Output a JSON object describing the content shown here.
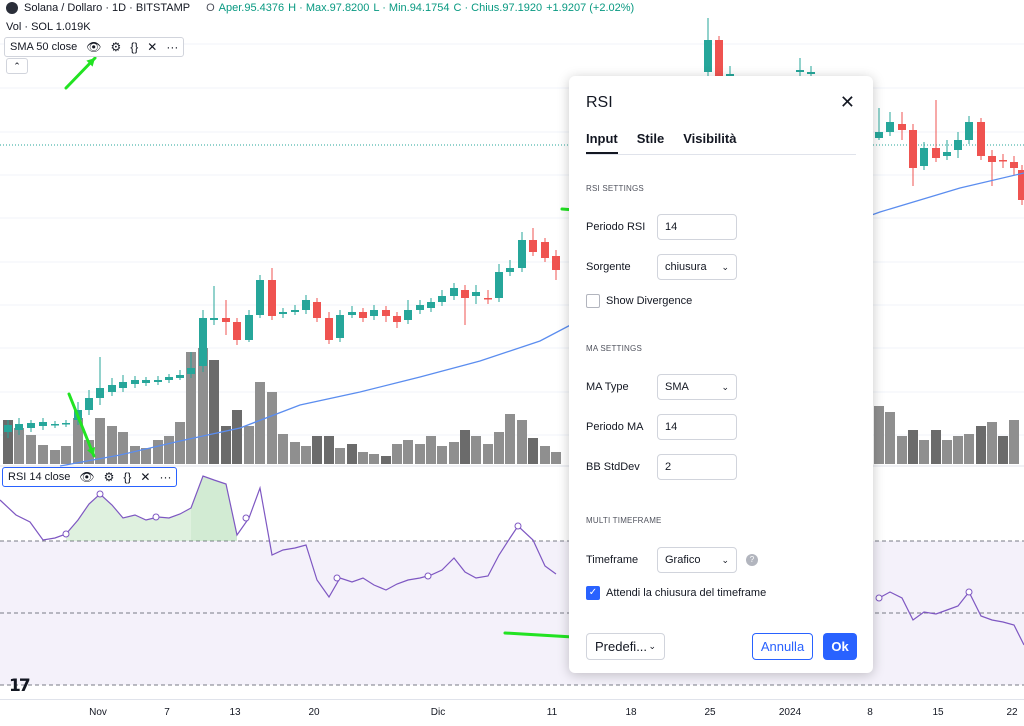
{
  "header": {
    "symbol": "Solana / Dollaro · 1D · BITSTAMP",
    "o_label": "O",
    "open": "Aper.95.4376",
    "high": "H · Max.97.8200",
    "low": "L · Min.94.1754",
    "close": "C · Chius.97.1920",
    "change": "+1.9207 (+2.02%)",
    "volume": "Vol · SOL  1.019K"
  },
  "sma_indicator": {
    "label": "SMA 50 close"
  },
  "rsi_indicator": {
    "label": "RSI 14 close"
  },
  "x_axis": [
    "Nov",
    "7",
    "13",
    "20",
    "Dic",
    "11",
    "18",
    "25",
    "2024",
    "8",
    "15",
    "22"
  ],
  "logo": "17",
  "colors": {
    "up": "#26a69a",
    "down": "#ef5350",
    "sma": "#5b8def",
    "rsi": "#7e57c2",
    "accent": "#2962ff",
    "arrow": "#22e322"
  },
  "dialog": {
    "title": "RSI",
    "tabs": [
      "Input",
      "Stile",
      "Visibilità"
    ],
    "rsi_settings": {
      "section": "RSI SETTINGS",
      "period_label": "Periodo RSI",
      "period_value": "14",
      "source_label": "Sorgente",
      "source_value": "chiusura",
      "divergence_label": "Show Divergence"
    },
    "ma_settings": {
      "section": "MA SETTINGS",
      "type_label": "MA Type",
      "type_value": "SMA",
      "period_label": "Periodo MA",
      "period_value": "14",
      "bb_label": "BB StdDev",
      "bb_value": "2"
    },
    "multi_tf": {
      "section": "MULTI TIMEFRAME",
      "tf_label": "Timeframe",
      "tf_value": "Grafico",
      "wait_label": "Attendi la chiusura del timeframe"
    },
    "footer": {
      "defaults": "Predefi...",
      "cancel": "Annulla",
      "ok": "Ok"
    }
  }
}
